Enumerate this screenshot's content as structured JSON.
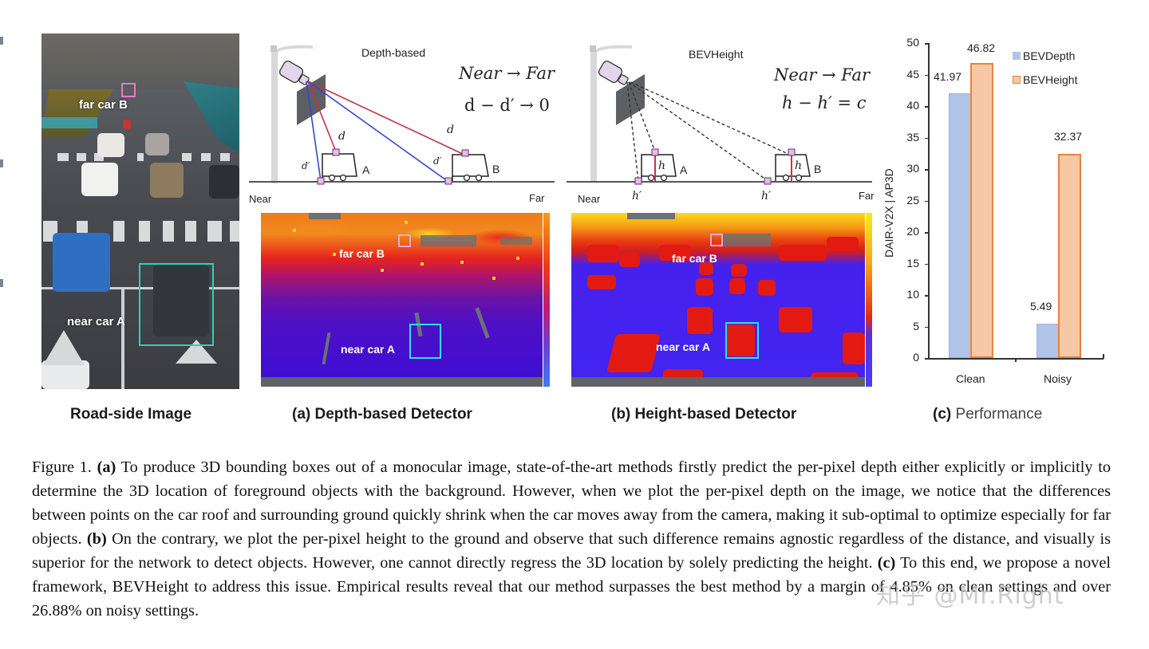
{
  "figure": {
    "panels": {
      "roadside": {
        "caption": "Road-side Image",
        "labels": {
          "far": "far car B",
          "near": "near car A"
        },
        "colors": {
          "far_box": "#e27ec6",
          "near_box": "#2fd3b0"
        }
      },
      "depth": {
        "caption_prefix": "(a)",
        "caption": "Depth-based Detector",
        "diagram_title": "Depth-based",
        "formula_line1": "Near → Far",
        "formula_line2": "d − d′ → 0",
        "axis_near": "Near",
        "axis_far": "Far",
        "var_d": "d",
        "var_d_prime": "d′",
        "car_a": "A",
        "car_b": "B",
        "heatmap_labels": {
          "far": "far car B",
          "near": "near car A"
        },
        "colors": {
          "ray_roof": "#c0334a",
          "ray_ground": "#3546d1"
        }
      },
      "height": {
        "caption_prefix": "(b)",
        "caption": "Height-based Detector",
        "diagram_title": "BEVHeight",
        "formula_line1": "Near → Far",
        "formula_line2": "h − h′ = c",
        "axis_near": "Near",
        "axis_far": "Far",
        "var_h": "h",
        "var_h_prime": "h′",
        "car_a": "A",
        "car_b": "B",
        "heatmap_labels": {
          "far": "far car B",
          "near": "near car A"
        }
      },
      "performance": {
        "caption_prefix": "(c)",
        "caption": "Performance"
      }
    },
    "caption": {
      "lead": "Figure 1.",
      "a_tag": "(a)",
      "a_text": " To produce 3D bounding boxes out of a monocular image, state-of-the-art methods firstly predict the per-pixel depth either explicitly or implicitly to determine the 3D location of foreground objects with the background.  However, when we plot the per-pixel depth on the image, we notice that the differences between points on the car roof and surrounding ground quickly shrink when the car moves away from the camera, making it sub-optimal to optimize especially for far objects.  ",
      "b_tag": "(b)",
      "b_text": " On the contrary, we plot the per-pixel height to the ground and observe that such difference remains agnostic regardless of the distance, and visually is superior for the network to detect objects. However, one cannot directly regress the 3D location by solely predicting the height. ",
      "c_tag": "(c)",
      "c_text": " To this end, we propose a novel framework, BEVHeight to address this issue. Empirical results reveal that our method surpasses the best method by a margin of 4.85% on clean settings and over 26.88% on noisy settings."
    },
    "watermark": "知乎 @Mr.Right"
  },
  "chart_data": {
    "type": "bar",
    "title": "",
    "categories": [
      "Clean",
      "Noisy"
    ],
    "series": [
      {
        "name": "BEVDepth",
        "values": [
          41.97,
          5.49
        ],
        "color": "#afc4e6"
      },
      {
        "name": "BEVHeight",
        "values": [
          46.82,
          32.37
        ],
        "color": "#f7c8a5",
        "edge": "#e7843f"
      }
    ],
    "data_labels": [
      [
        "41.97",
        "5.49"
      ],
      [
        "46.82",
        "32.37"
      ]
    ],
    "xlabel": "",
    "ylabel": "DAIR-V2X | AP3D",
    "ylim": [
      0,
      50
    ],
    "yticks": [
      "0",
      "5",
      "10",
      "15",
      "20",
      "25",
      "30",
      "35",
      "40",
      "45",
      "50"
    ],
    "grid": false,
    "legend_position": "top-right"
  }
}
